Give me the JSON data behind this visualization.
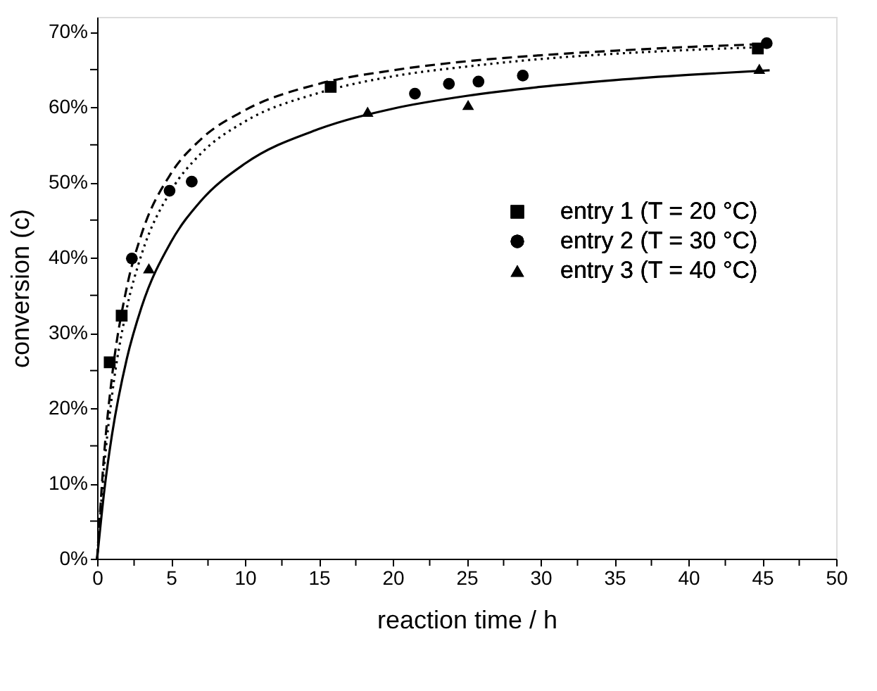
{
  "chart_data": {
    "type": "scatter",
    "xlabel": "reaction time / h",
    "ylabel": "conversion (c)",
    "xlim": [
      0,
      50
    ],
    "ylim": [
      0,
      72
    ],
    "xticks": [
      0,
      {
        "value": 2.5,
        "label": null
      },
      5,
      {
        "value": 7.5,
        "label": null
      },
      10,
      {
        "value": 12.5,
        "label": null
      },
      15,
      {
        "value": 17.5,
        "label": null
      },
      20,
      {
        "value": 22.5,
        "label": null
      },
      25,
      {
        "value": 27.5,
        "label": null
      },
      30,
      {
        "value": 32.5,
        "label": null
      },
      35,
      {
        "value": 37.5,
        "label": null
      },
      40,
      {
        "value": 42.5,
        "label": null
      },
      45,
      {
        "value": 47.5,
        "label": null
      },
      50
    ],
    "yticks": [
      {
        "value": 0,
        "label": "0%"
      },
      {
        "value": 5,
        "label": null
      },
      {
        "value": 10,
        "label": "10%"
      },
      {
        "value": 15,
        "label": null
      },
      {
        "value": 20,
        "label": "20%"
      },
      {
        "value": 25,
        "label": null
      },
      {
        "value": 30,
        "label": "30%"
      },
      {
        "value": 35,
        "label": null
      },
      {
        "value": 40,
        "label": "40%"
      },
      {
        "value": 45,
        "label": null
      },
      {
        "value": 50,
        "label": "50%"
      },
      {
        "value": 55,
        "label": null
      },
      {
        "value": 60,
        "label": "60%"
      },
      {
        "value": 65,
        "label": null
      },
      {
        "value": 70,
        "label": "70%"
      }
    ],
    "grid": false,
    "legend": "right",
    "series": [
      {
        "name": "entry 1 (T = 20 °C)",
        "marker": "square",
        "color": "#000000",
        "x": [
          0.85,
          1.66,
          15.8,
          44.7
        ],
        "values": [
          26.1,
          32.3,
          62.7,
          67.8
        ]
      },
      {
        "name": "entry 2 (T = 30 °C)",
        "marker": "circle",
        "color": "#000000",
        "x": [
          2.35,
          4.9,
          6.4,
          21.5,
          23.8,
          25.8,
          28.8,
          45.3
        ],
        "values": [
          39.9,
          48.9,
          50.1,
          61.8,
          63.1,
          63.4,
          64.2,
          68.5
        ]
      },
      {
        "name": "entry 3 (T = 40 °C)",
        "marker": "triangle",
        "color": "#000000",
        "x": [
          3.5,
          18.3,
          25.1,
          44.8
        ],
        "values": [
          38.6,
          59.4,
          60.3,
          65.1
        ]
      },
      {
        "type": "line",
        "line_style": "dashed",
        "color": "#000000",
        "x": [
          0,
          0.5,
          1,
          2,
          3,
          5,
          7,
          10,
          15,
          20,
          25,
          30,
          35,
          40,
          45.5
        ],
        "values": [
          0,
          14.5,
          24.1,
          36.0,
          43.1,
          51.2,
          55.7,
          59.6,
          63.1,
          64.9,
          66.1,
          66.9,
          67.5,
          68.0,
          68.4
        ]
      },
      {
        "type": "line",
        "line_style": "dotted",
        "color": "#000000",
        "x": [
          0,
          0.5,
          1,
          2,
          3,
          5,
          7,
          10,
          15,
          20,
          25,
          30,
          35,
          40,
          45.2
        ],
        "values": [
          0,
          12.7,
          21.6,
          33.2,
          40.4,
          48.9,
          53.8,
          58.1,
          61.9,
          64.1,
          65.4,
          66.4,
          67.1,
          67.6,
          68.0
        ]
      },
      {
        "type": "line",
        "line_style": "solid",
        "color": "#000000",
        "x": [
          0,
          0.5,
          1,
          2,
          3,
          5,
          7,
          10,
          15,
          20,
          25,
          30,
          35,
          40,
          45.5
        ],
        "values": [
          0,
          9.3,
          16.4,
          26.5,
          33.4,
          42.1,
          47.5,
          52.5,
          57.1,
          59.8,
          61.5,
          62.7,
          63.6,
          64.3,
          64.9
        ]
      }
    ]
  }
}
